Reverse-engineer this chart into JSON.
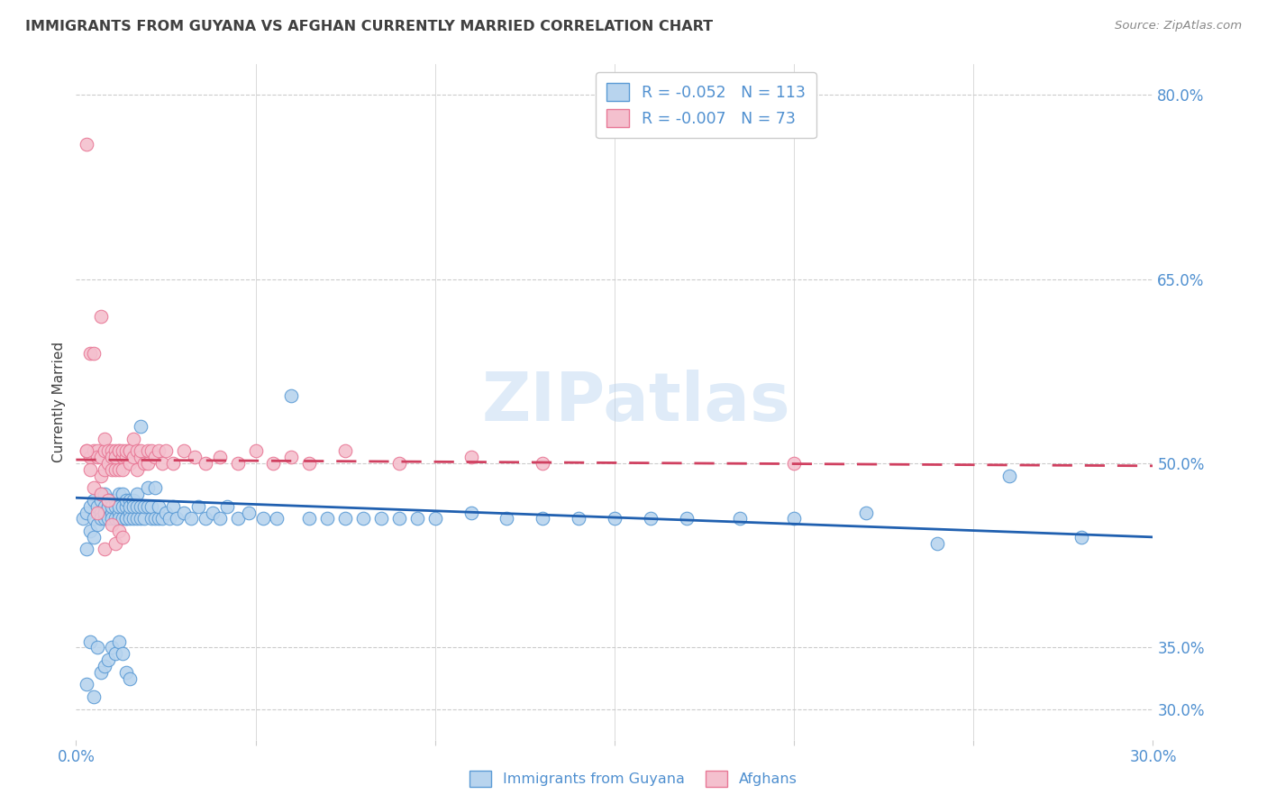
{
  "title": "IMMIGRANTS FROM GUYANA VS AFGHAN CURRENTLY MARRIED CORRELATION CHART",
  "source": "Source: ZipAtlas.com",
  "ylabel": "Currently Married",
  "yticks": [
    0.3,
    0.35,
    0.5,
    0.65,
    0.8
  ],
  "ytick_labels": [
    "30.0%",
    "35.0%",
    "50.0%",
    "65.0%",
    "80.0%"
  ],
  "xmin": 0.0,
  "xmax": 0.3,
  "ymin": 0.275,
  "ymax": 0.825,
  "series1_label": "Immigrants from Guyana",
  "series1_R": "-0.052",
  "series1_N": "113",
  "series1_color": "#b8d4ee",
  "series1_edge": "#5b9bd5",
  "series2_label": "Afghans",
  "series2_R": "-0.007",
  "series2_N": "73",
  "series2_color": "#f4c0ce",
  "series2_edge": "#e87896",
  "trend1_color": "#2060b0",
  "trend2_color": "#d04060",
  "watermark": "ZIPatlas",
  "background_color": "#ffffff",
  "grid_color": "#cccccc",
  "title_color": "#404040",
  "axis_label_color": "#5090d0",
  "xtick_positions": [
    0.0,
    0.05,
    0.1,
    0.15,
    0.2,
    0.25,
    0.3
  ],
  "series1_x": [
    0.002,
    0.003,
    0.003,
    0.004,
    0.004,
    0.005,
    0.005,
    0.005,
    0.006,
    0.006,
    0.007,
    0.007,
    0.007,
    0.007,
    0.008,
    0.008,
    0.008,
    0.008,
    0.009,
    0.009,
    0.009,
    0.01,
    0.01,
    0.01,
    0.01,
    0.011,
    0.011,
    0.011,
    0.012,
    0.012,
    0.012,
    0.012,
    0.013,
    0.013,
    0.013,
    0.014,
    0.014,
    0.014,
    0.014,
    0.015,
    0.015,
    0.015,
    0.015,
    0.016,
    0.016,
    0.016,
    0.017,
    0.017,
    0.017,
    0.018,
    0.018,
    0.018,
    0.019,
    0.019,
    0.02,
    0.02,
    0.021,
    0.021,
    0.022,
    0.022,
    0.023,
    0.023,
    0.024,
    0.025,
    0.026,
    0.027,
    0.028,
    0.03,
    0.032,
    0.034,
    0.036,
    0.038,
    0.04,
    0.042,
    0.045,
    0.048,
    0.052,
    0.056,
    0.06,
    0.065,
    0.07,
    0.075,
    0.08,
    0.085,
    0.09,
    0.095,
    0.1,
    0.11,
    0.12,
    0.13,
    0.14,
    0.15,
    0.16,
    0.17,
    0.185,
    0.2,
    0.22,
    0.24,
    0.26,
    0.28,
    0.003,
    0.004,
    0.005,
    0.006,
    0.007,
    0.008,
    0.009,
    0.01,
    0.011,
    0.012,
    0.013,
    0.014,
    0.015
  ],
  "series1_y": [
    0.455,
    0.43,
    0.46,
    0.445,
    0.465,
    0.455,
    0.47,
    0.44,
    0.45,
    0.465,
    0.47,
    0.46,
    0.475,
    0.455,
    0.465,
    0.475,
    0.455,
    0.46,
    0.465,
    0.47,
    0.455,
    0.46,
    0.47,
    0.455,
    0.465,
    0.47,
    0.455,
    0.465,
    0.46,
    0.475,
    0.455,
    0.465,
    0.455,
    0.465,
    0.475,
    0.455,
    0.465,
    0.47,
    0.455,
    0.46,
    0.47,
    0.455,
    0.465,
    0.455,
    0.47,
    0.465,
    0.455,
    0.475,
    0.465,
    0.53,
    0.455,
    0.465,
    0.455,
    0.465,
    0.465,
    0.48,
    0.455,
    0.465,
    0.455,
    0.48,
    0.455,
    0.465,
    0.455,
    0.46,
    0.455,
    0.465,
    0.455,
    0.46,
    0.455,
    0.465,
    0.455,
    0.46,
    0.455,
    0.465,
    0.455,
    0.46,
    0.455,
    0.455,
    0.555,
    0.455,
    0.455,
    0.455,
    0.455,
    0.455,
    0.455,
    0.455,
    0.455,
    0.46,
    0.455,
    0.455,
    0.455,
    0.455,
    0.455,
    0.455,
    0.455,
    0.455,
    0.46,
    0.435,
    0.49,
    0.44,
    0.32,
    0.355,
    0.31,
    0.35,
    0.33,
    0.335,
    0.34,
    0.35,
    0.345,
    0.355,
    0.345,
    0.33,
    0.325
  ],
  "series2_x": [
    0.003,
    0.003,
    0.004,
    0.004,
    0.005,
    0.005,
    0.006,
    0.006,
    0.007,
    0.007,
    0.007,
    0.008,
    0.008,
    0.008,
    0.009,
    0.009,
    0.01,
    0.01,
    0.01,
    0.011,
    0.011,
    0.011,
    0.012,
    0.012,
    0.012,
    0.013,
    0.013,
    0.013,
    0.014,
    0.014,
    0.015,
    0.015,
    0.015,
    0.016,
    0.016,
    0.017,
    0.017,
    0.018,
    0.018,
    0.019,
    0.02,
    0.02,
    0.021,
    0.022,
    0.023,
    0.024,
    0.025,
    0.027,
    0.03,
    0.033,
    0.036,
    0.04,
    0.045,
    0.05,
    0.055,
    0.06,
    0.065,
    0.075,
    0.09,
    0.11,
    0.13,
    0.2,
    0.003,
    0.004,
    0.005,
    0.006,
    0.007,
    0.008,
    0.009,
    0.01,
    0.011,
    0.012,
    0.013
  ],
  "series2_y": [
    0.76,
    0.51,
    0.59,
    0.505,
    0.59,
    0.51,
    0.51,
    0.505,
    0.49,
    0.505,
    0.62,
    0.51,
    0.495,
    0.52,
    0.5,
    0.51,
    0.51,
    0.495,
    0.505,
    0.51,
    0.495,
    0.505,
    0.51,
    0.495,
    0.51,
    0.505,
    0.51,
    0.495,
    0.505,
    0.51,
    0.51,
    0.5,
    0.51,
    0.505,
    0.52,
    0.51,
    0.495,
    0.505,
    0.51,
    0.5,
    0.51,
    0.5,
    0.51,
    0.505,
    0.51,
    0.5,
    0.51,
    0.5,
    0.51,
    0.505,
    0.5,
    0.505,
    0.5,
    0.51,
    0.5,
    0.505,
    0.5,
    0.51,
    0.5,
    0.505,
    0.5,
    0.5,
    0.51,
    0.495,
    0.48,
    0.46,
    0.475,
    0.43,
    0.47,
    0.45,
    0.435,
    0.445,
    0.44
  ]
}
